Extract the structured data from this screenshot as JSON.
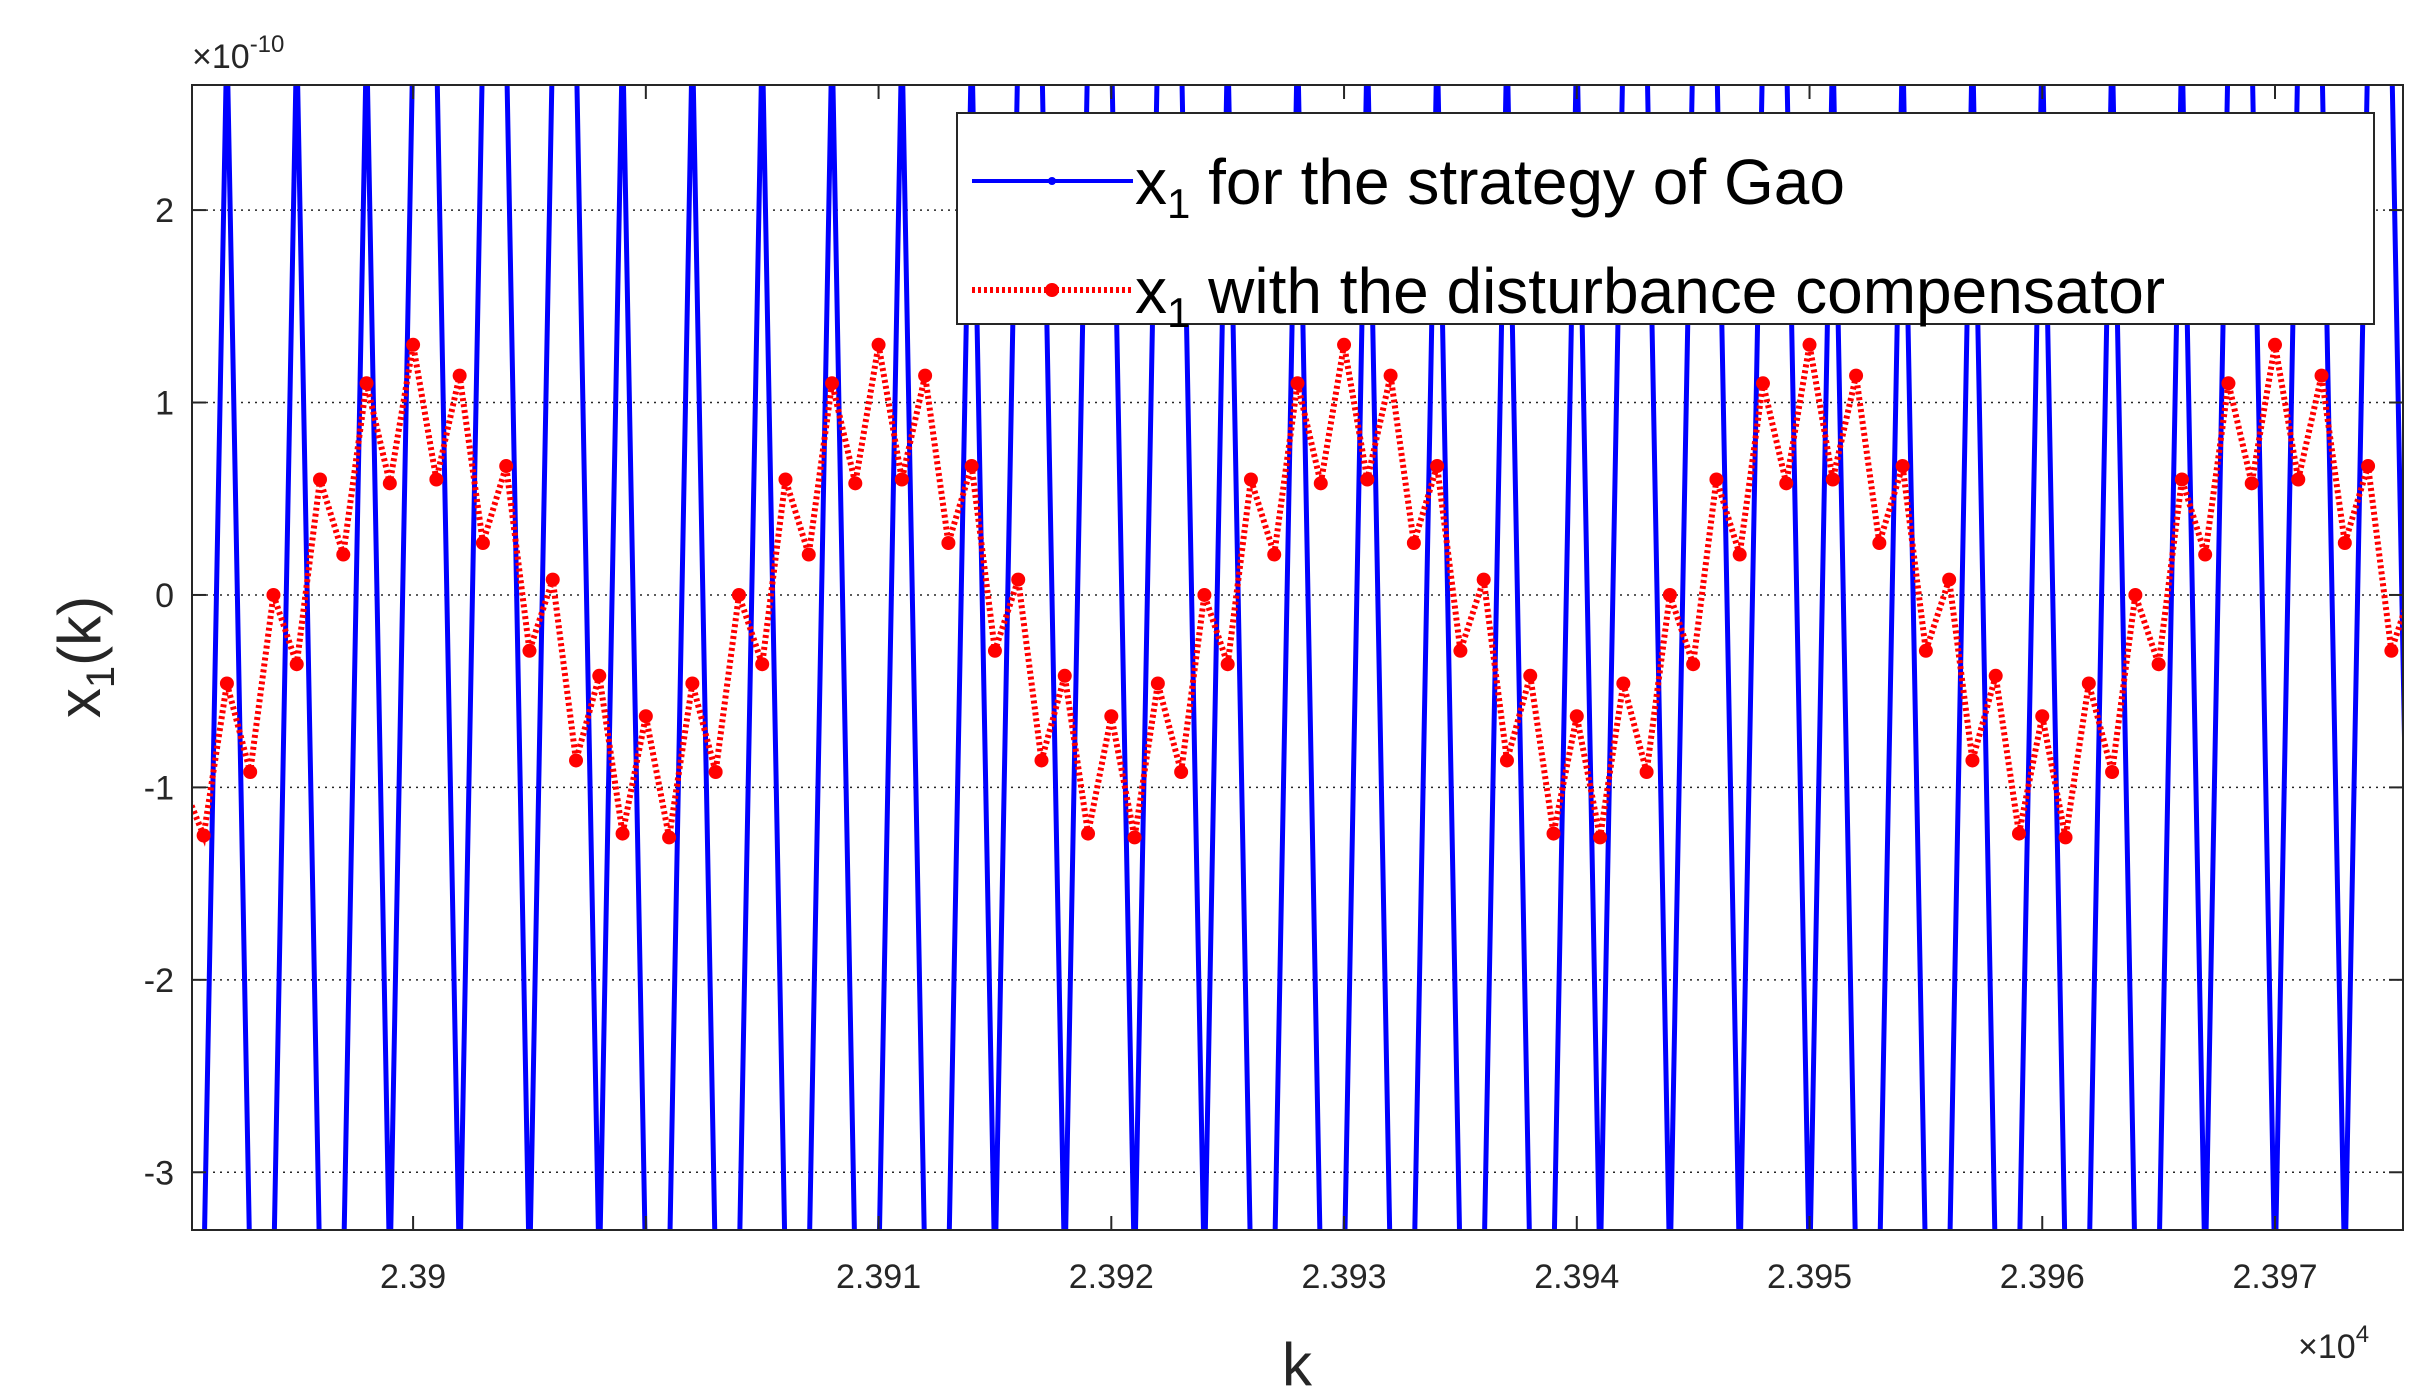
{
  "chart_data": {
    "type": "line",
    "xlabel": "k",
    "xlabel_sub": "",
    "ylabel": "x",
    "ylabel_sub": "1",
    "ylabel_suffix": "(k)",
    "x_exponent_label": "×10",
    "x_exponent_power": "4",
    "y_exponent_label": "×10",
    "y_exponent_power": "-10",
    "xlim": [
      23880.5,
      23975.5
    ],
    "ylim": [
      -3.3,
      2.65
    ],
    "x_scale_factor": 10000,
    "y_scale_factor": 1e-10,
    "x_ticks": [
      23890,
      23910,
      23920,
      23930,
      23940,
      23950,
      23960,
      23970
    ],
    "x_tick_labels": [
      "2.39",
      "2.391",
      "2.392",
      "2.393",
      "2.394",
      "2.395",
      "2.396",
      "2.397"
    ],
    "x_ticks_all": [
      23890,
      23900,
      23910,
      23920,
      23930,
      23940,
      23950,
      23960,
      23970
    ],
    "y_ticks": [
      -3,
      -2,
      -1,
      0,
      1,
      2
    ],
    "y_tick_labels": [
      "-3",
      "-2",
      "-1",
      "0",
      "1",
      "2"
    ],
    "grid": "dotted-y",
    "legend_placement": "top-right",
    "series": [
      {
        "name": "x1 for the strategy of Gao",
        "legend_main": "x",
        "legend_sub": "1",
        "legend_rest": " for the strategy of Gao",
        "color": "#0000ff",
        "style": "solid",
        "marker": "dot",
        "x_start": 23880,
        "x_step": 1,
        "values": [
          -1000000000.0,
          -1000000000.0,
          1000000000.0,
          -1000000000.0,
          -1000000000.0,
          1000000000.0,
          -1000000000.0,
          -1000000000.0,
          1000000000.0,
          -1000000000.0,
          1000000000.0,
          1000000000.0,
          -1000000000.0,
          1000000000.0,
          1000000000.0,
          -1000000000.0,
          1000000000.0,
          1000000000.0,
          -1000000000.0,
          1000000000.0,
          -1000000000.0,
          -1000000000.0,
          1000000000.0,
          -1000000000.0,
          -1000000000.0,
          1000000000.0,
          -1000000000.0,
          -1000000000.0,
          1000000000.0,
          -1000000000.0,
          -1000000000.0,
          1000000000.0,
          -1000000000.0,
          -1000000000.0,
          1000000000.0,
          -1000000000.0,
          1000000000.0,
          1000000000.0,
          -1000000000.0,
          1000000000.0,
          1000000000.0,
          -1000000000.0,
          1000000000.0,
          1000000000.0,
          -1000000000.0,
          1000000000.0,
          -1000000000.0,
          -1000000000.0,
          1000000000.0,
          -1000000000.0,
          -1000000000.0,
          1000000000.0,
          -1000000000.0,
          -1000000000.0,
          1000000000.0,
          -1000000000.0,
          -1000000000.0,
          1000000000.0,
          -1000000000.0,
          -1000000000.0,
          1000000000.0,
          -1000000000.0,
          1000000000.0,
          1000000000.0,
          -1000000000.0,
          1000000000.0,
          1000000000.0,
          -1000000000.0,
          1000000000.0,
          1000000000.0,
          -1000000000.0,
          1000000000.0,
          -1000000000.0,
          -1000000000.0,
          1000000000.0,
          -1000000000.0,
          -1000000000.0,
          1000000000.0,
          -1000000000.0,
          -1000000000.0,
          1000000000.0,
          -1000000000.0,
          -1000000000.0,
          1000000000.0,
          -1000000000.0,
          -1000000000.0,
          1000000000.0,
          -1000000000.0,
          1000000000.0,
          1000000000.0,
          -1000000000.0,
          1000000000.0,
          1000000000.0,
          -1000000000.0,
          1000000000.0,
          1000000000.0,
          -1000000000.0
        ]
      },
      {
        "name": "x1 with the disturbance compensator",
        "legend_main": "x",
        "legend_sub": "1",
        "legend_rest": " with the disturbance compensator",
        "color": "#ff0000",
        "style": "dotted",
        "marker": "dot",
        "x_start": 23880,
        "x_step": 1,
        "values": [
          -0.95,
          -1.25,
          -0.46,
          -0.92,
          0.0,
          -0.36,
          0.6,
          0.21,
          1.1,
          0.58,
          1.3,
          0.6,
          1.14,
          0.27,
          0.67,
          -0.29,
          0.08,
          -0.86,
          -0.42,
          -1.24,
          -0.63,
          -1.26,
          -0.46,
          -0.92,
          0.0,
          -0.36,
          0.6,
          0.21,
          1.1,
          0.58,
          1.3,
          0.6,
          1.14,
          0.27,
          0.67,
          -0.29,
          0.08,
          -0.86,
          -0.42,
          -1.24,
          -0.63,
          -1.26,
          -0.46,
          -0.92,
          0.0,
          -0.36,
          0.6,
          0.21,
          1.1,
          0.58,
          1.3,
          0.6,
          1.14,
          0.27,
          0.67,
          -0.29,
          0.08,
          -0.86,
          -0.42,
          -1.24,
          -0.63,
          -1.26,
          -0.46,
          -0.92,
          0.0,
          -0.36,
          0.6,
          0.21,
          1.1,
          0.58,
          1.3,
          0.6,
          1.14,
          0.27,
          0.67,
          -0.29,
          0.08,
          -0.86,
          -0.42,
          -1.24,
          -0.63,
          -1.26,
          -0.46,
          -0.92,
          0.0,
          -0.36,
          0.6,
          0.21,
          1.1,
          0.58,
          1.3,
          0.6,
          1.14,
          0.27,
          0.67,
          -0.29,
          0.08,
          -0.34
        ]
      }
    ]
  }
}
